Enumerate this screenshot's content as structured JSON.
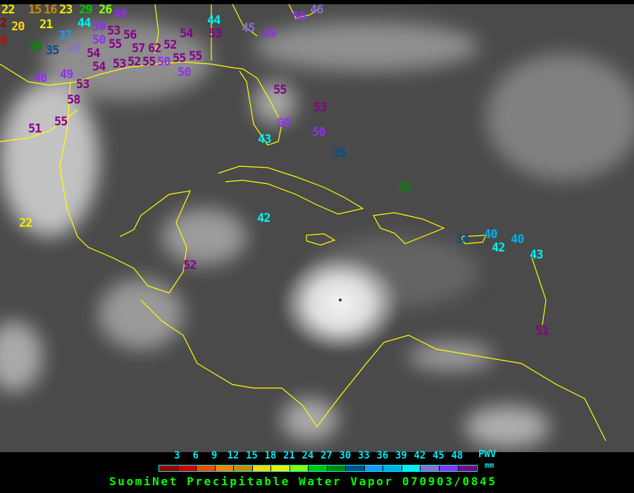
{
  "title": "SuomiNet Precipitable Water Vapor 070903/0845",
  "legend": {
    "unit_label": "PWV",
    "unit": "mm",
    "ticks": [
      "3",
      "6",
      "9",
      "12",
      "15",
      "18",
      "21",
      "24",
      "27",
      "30",
      "33",
      "36",
      "39",
      "42",
      "45",
      "48"
    ],
    "colors": [
      "#990000",
      "#d40000",
      "#f04a00",
      "#ff8000",
      "#c88a00",
      "#ffd500",
      "#f0ea00",
      "#88ff00",
      "#00c800",
      "#008a00",
      "#00508a",
      "#2097f5",
      "#00b0e8",
      "#00f0f0",
      "#8870d0",
      "#9030f0",
      "#880088"
    ]
  },
  "coastline_color": "#ffff00",
  "stations": [
    "22",
    "2",
    "20",
    "8",
    "15",
    "16",
    "21",
    "23",
    "29",
    "26",
    "37",
    "30",
    "35",
    "45",
    "44",
    "49",
    "50",
    "50",
    "54",
    "55",
    "53",
    "56",
    "57",
    "52",
    "54",
    "53",
    "55",
    "50",
    "62",
    "55",
    "50",
    "55",
    "54",
    "52",
    "53",
    "44",
    "45",
    "49",
    "50",
    "46",
    "48",
    "49",
    "53",
    "58",
    "51",
    "55",
    "55",
    "53",
    "50",
    "50",
    "43",
    "35",
    "32",
    "22",
    "42",
    "52",
    "34",
    "40",
    "42",
    "40",
    "43",
    "51"
  ]
}
